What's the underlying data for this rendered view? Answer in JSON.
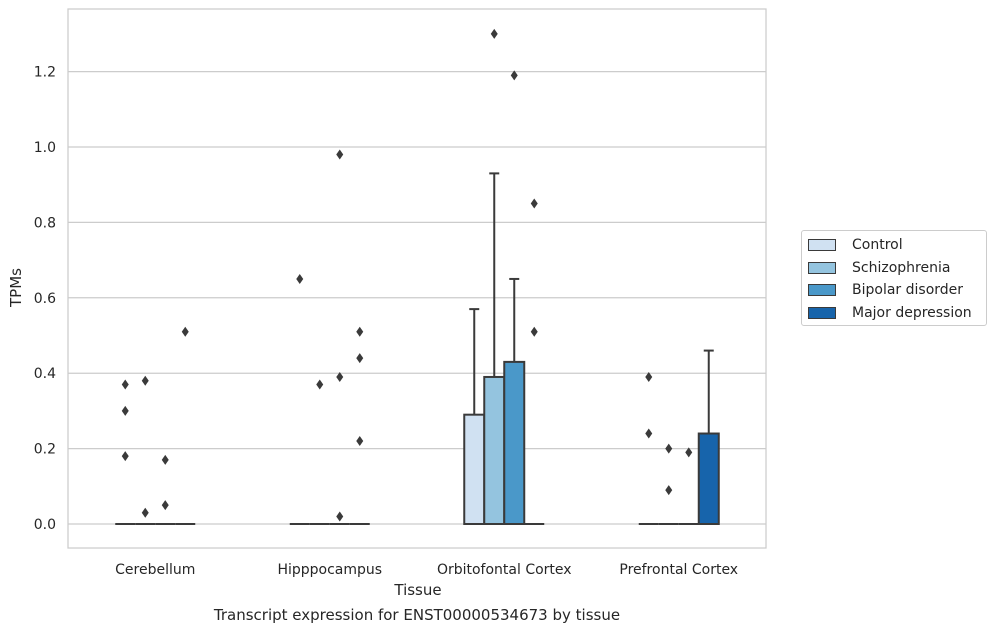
{
  "chart_data": {
    "type": "boxplot",
    "title": "Transcript expression for ENST00000534673 by tissue",
    "xlabel": "Tissue",
    "ylabel": "TPMs",
    "ylim": [
      -0.065,
      1.37
    ],
    "yticks": [
      "0.0",
      "0.2",
      "0.4",
      "0.6",
      "0.8",
      "1.0",
      "1.2"
    ],
    "categories": [
      "Cerebellum",
      "Hipppocampus",
      "Orbitofontal Cortex",
      "Prefrontal Cortex"
    ],
    "grid": true,
    "legend_position": "right",
    "series": [
      {
        "name": "Control",
        "color": "#d0e1f2",
        "boxes": [
          {
            "q1": 0,
            "median": 0,
            "q3": 0,
            "whisker_low": 0,
            "whisker_high": 0,
            "outliers": [
              0.37,
              0.3,
              0.18
            ]
          },
          {
            "q1": 0,
            "median": 0,
            "q3": 0,
            "whisker_low": 0,
            "whisker_high": 0,
            "outliers": [
              0.65
            ]
          },
          {
            "q1": 0,
            "median": 0,
            "q3": 0.29,
            "whisker_low": 0,
            "whisker_high": 0.57,
            "outliers": []
          },
          {
            "q1": 0,
            "median": 0,
            "q3": 0,
            "whisker_low": 0,
            "whisker_high": 0,
            "outliers": [
              0.39,
              0.24
            ]
          }
        ]
      },
      {
        "name": "Schizophrenia",
        "color": "#94c4df",
        "boxes": [
          {
            "q1": 0,
            "median": 0,
            "q3": 0,
            "whisker_low": 0,
            "whisker_high": 0,
            "outliers": [
              0.38,
              0.03
            ]
          },
          {
            "q1": 0,
            "median": 0,
            "q3": 0,
            "whisker_low": 0,
            "whisker_high": 0,
            "outliers": [
              0.37
            ]
          },
          {
            "q1": 0,
            "median": 0,
            "q3": 0.39,
            "whisker_low": 0,
            "whisker_high": 0.93,
            "outliers": [
              1.3
            ]
          },
          {
            "q1": 0,
            "median": 0,
            "q3": 0,
            "whisker_low": 0,
            "whisker_high": 0,
            "outliers": [
              0.2,
              0.09
            ]
          }
        ]
      },
      {
        "name": "Bipolar disorder",
        "color": "#4a98c9",
        "boxes": [
          {
            "q1": 0,
            "median": 0,
            "q3": 0,
            "whisker_low": 0,
            "whisker_high": 0,
            "outliers": [
              0.17,
              0.05
            ]
          },
          {
            "q1": 0,
            "median": 0,
            "q3": 0,
            "whisker_low": 0,
            "whisker_high": 0,
            "outliers": [
              0.98,
              0.39,
              0.02
            ]
          },
          {
            "q1": 0,
            "median": 0,
            "q3": 0.43,
            "whisker_low": 0,
            "whisker_high": 0.65,
            "outliers": [
              1.19
            ]
          },
          {
            "q1": 0,
            "median": 0,
            "q3": 0,
            "whisker_low": 0,
            "whisker_high": 0,
            "outliers": [
              0.19
            ]
          }
        ]
      },
      {
        "name": "Major depression",
        "color": "#1764ab",
        "boxes": [
          {
            "q1": 0,
            "median": 0,
            "q3": 0,
            "whisker_low": 0,
            "whisker_high": 0,
            "outliers": [
              0.51
            ]
          },
          {
            "q1": 0,
            "median": 0,
            "q3": 0,
            "whisker_low": 0,
            "whisker_high": 0,
            "outliers": [
              0.51,
              0.44,
              0.22
            ]
          },
          {
            "q1": 0,
            "median": 0,
            "q3": 0,
            "whisker_low": 0,
            "whisker_high": 0,
            "outliers": [
              0.85,
              0.51
            ]
          },
          {
            "q1": 0,
            "median": 0,
            "q3": 0.24,
            "whisker_low": 0,
            "whisker_high": 0.46,
            "outliers": []
          }
        ]
      }
    ]
  }
}
